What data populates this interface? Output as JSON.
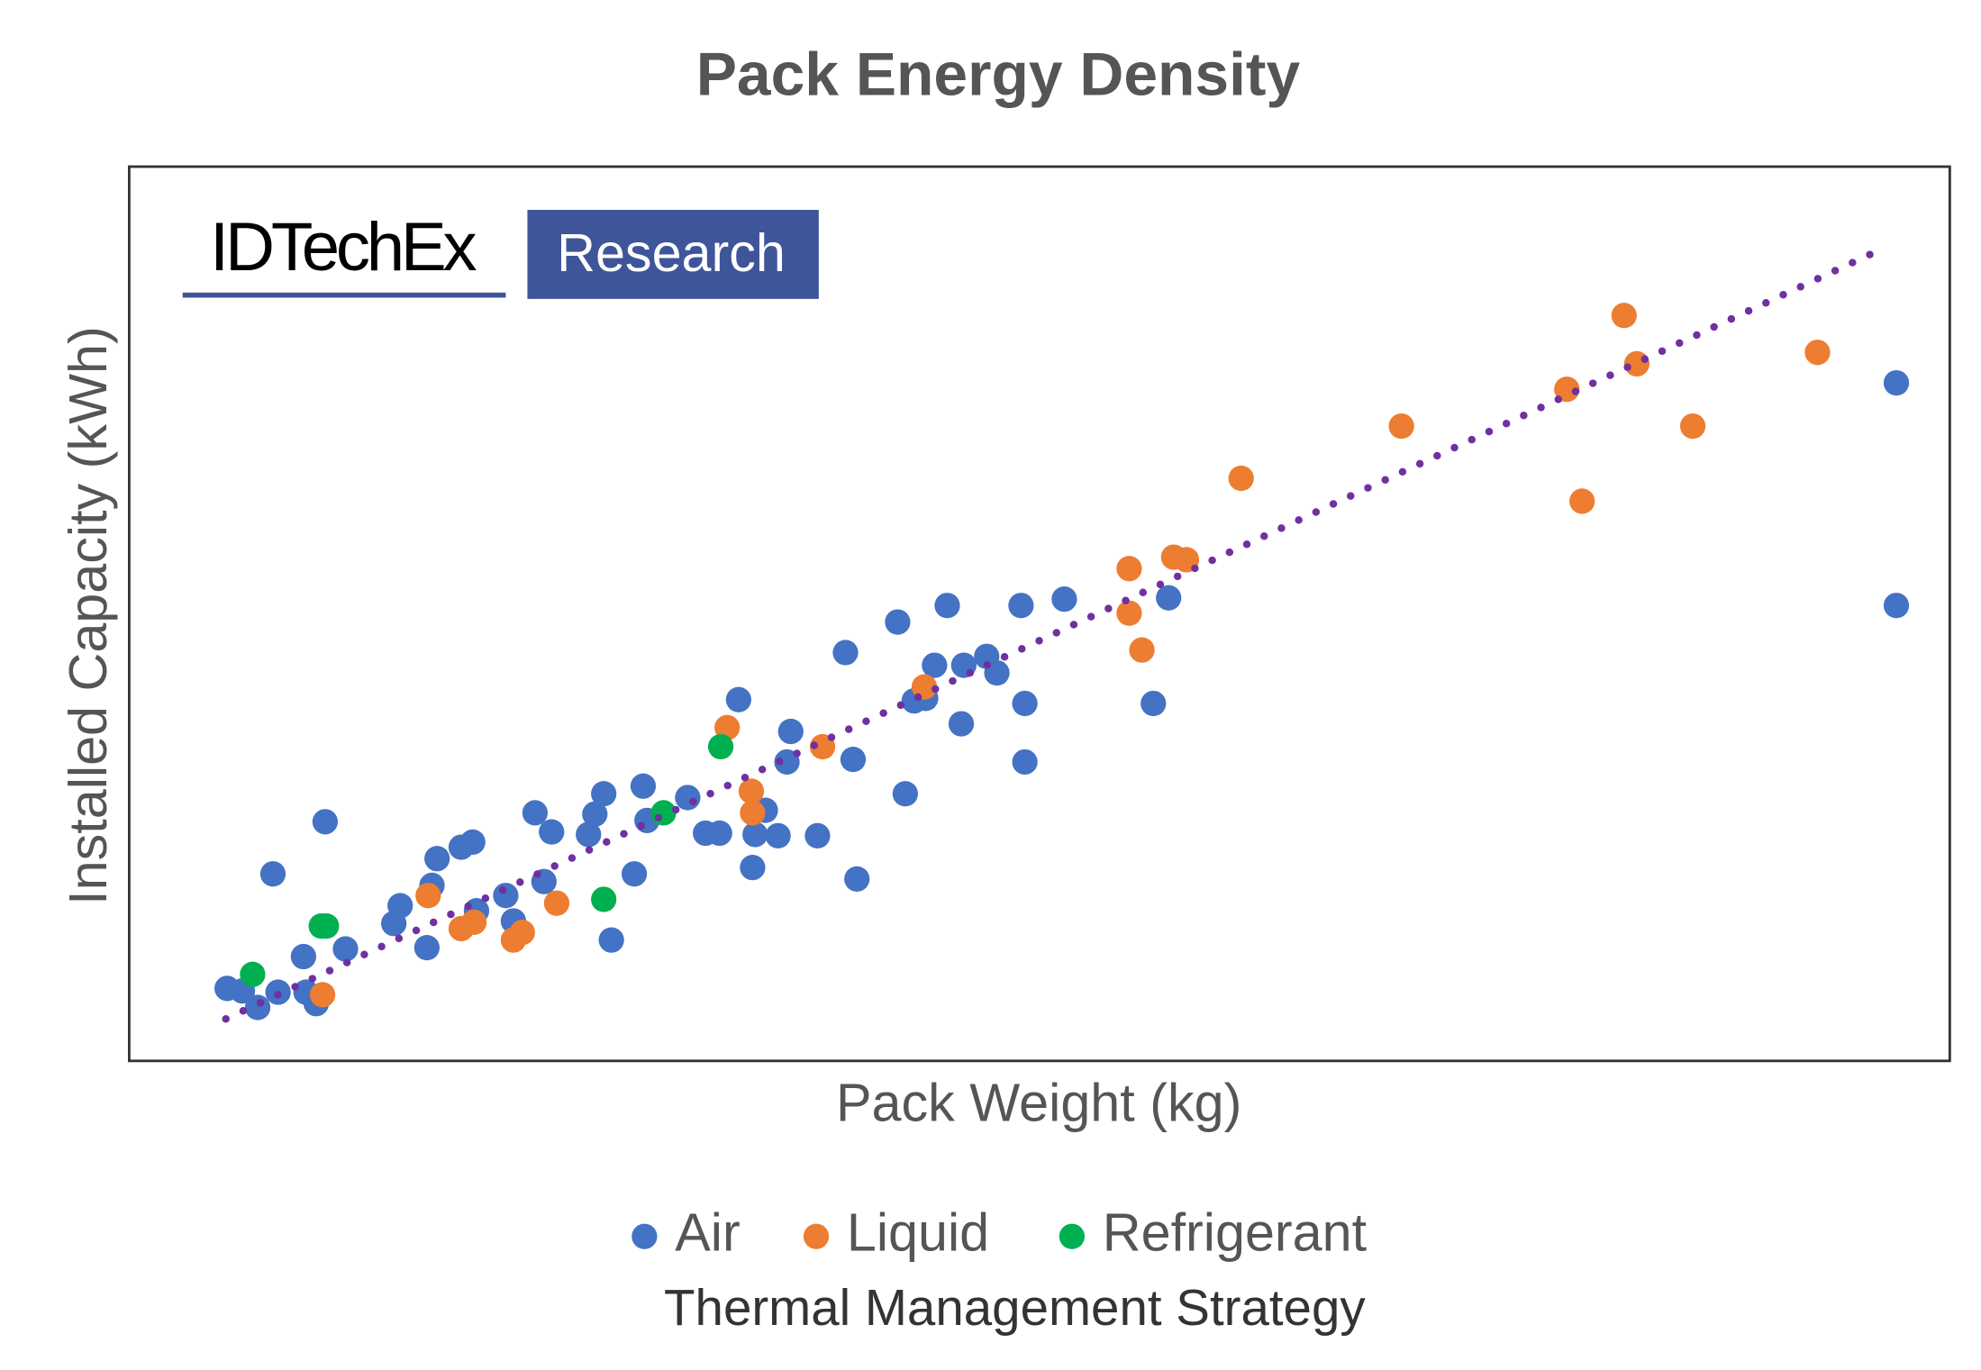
{
  "chart_data": {
    "type": "scatter",
    "title": "Pack Energy Density",
    "x_label": "Pack Weight (kg)",
    "y_label": "Installed Capacity (kWh)",
    "legend_title": "Thermal Management Strategy",
    "logo": {
      "brand": "IDTechEx",
      "tag": "Research"
    },
    "xlim": [
      0,
      1431
    ],
    "ylim": [
      0,
      703
    ],
    "series": [
      {
        "name": "Air",
        "color": "#4472c4",
        "x": [
          77,
          89,
          101,
          117,
          139,
          147,
          137,
          113,
          154,
          170,
          208,
          213,
          234,
          238,
          242,
          261,
          270,
          273,
          296,
          302,
          319,
          326,
          332,
          361,
          366,
          373,
          379,
          397,
          404,
          407,
          439,
          453,
          464,
          479,
          490,
          492,
          500,
          510,
          517,
          520,
          541,
          563,
          569,
          572,
          604,
          610,
          617,
          626,
          633,
          643,
          654,
          656,
          674,
          682,
          701,
          704,
          704,
          735,
          805,
          817,
          1389,
          1389
        ],
        "values": [
          57,
          55,
          42,
          54,
          54,
          45,
          82,
          147,
          188,
          88,
          108,
          122,
          89,
          138,
          159,
          168,
          172,
          118,
          130,
          110,
          195,
          141,
          180,
          178,
          194,
          210,
          95,
          147,
          216,
          189,
          207,
          179,
          179,
          284,
          152,
          178,
          197,
          177,
          235,
          259,
          177,
          321,
          237,
          143,
          345,
          210,
          283,
          285,
          311,
          358,
          265,
          311,
          318,
          305,
          358,
          281,
          235,
          363,
          281,
          364,
          533,
          358
        ]
      },
      {
        "name": "Liquid",
        "color": "#ed7d31",
        "x": [
          152,
          235,
          261,
          271,
          302,
          309,
          336,
          470,
          489,
          490,
          545,
          625,
          786,
          786,
          796,
          821,
          831,
          874,
          1000,
          1130,
          1142,
          1175,
          1185,
          1229,
          1327
        ],
        "values": [
          52,
          130,
          104,
          109,
          95,
          101,
          124,
          262,
          212,
          195,
          247,
          294,
          387,
          352,
          323,
          396,
          394,
          458,
          499,
          528,
          440,
          586,
          548,
          499,
          557
        ]
      },
      {
        "name": "Refrigerant",
        "color": "#00b050",
        "x": [
          97,
          151,
          155,
          373,
          420,
          465
        ],
        "values": [
          68,
          106,
          106,
          127,
          195,
          247
        ]
      }
    ],
    "trendline": {
      "color": "#7030a0",
      "x": [
        76,
        1377
      ],
      "values": [
        33,
        638
      ]
    }
  }
}
